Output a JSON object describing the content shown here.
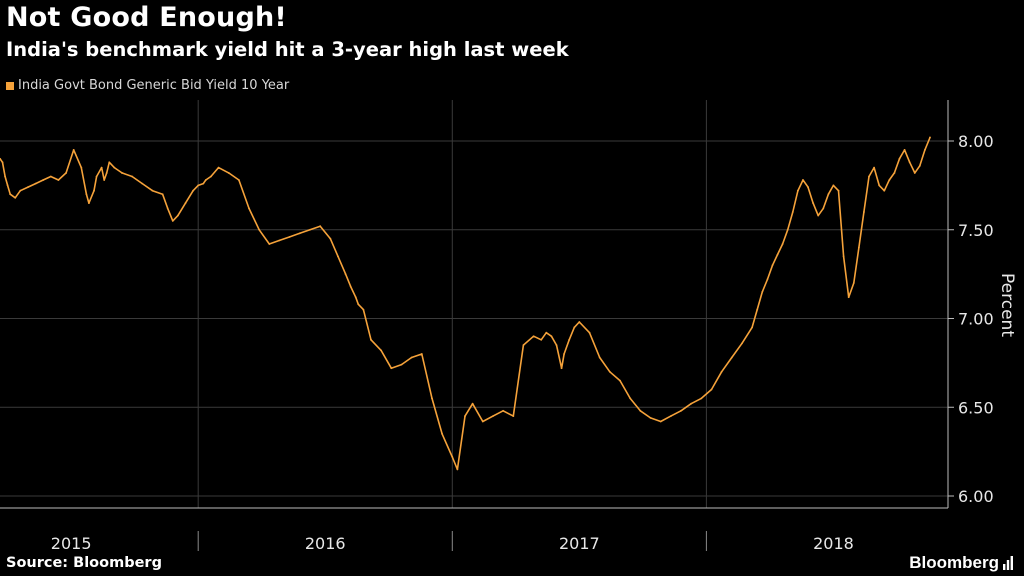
{
  "header": {
    "title": "Not Good Enough!",
    "subtitle": "India's benchmark yield hit a 3-year high last week"
  },
  "footer": {
    "source": "Source: Bloomberg",
    "brand": "Bloomberg"
  },
  "colors": {
    "background": "#000000",
    "series": "#f5a23a",
    "grid": "#3a3a3a"
  },
  "chart_data": {
    "type": "line",
    "title": "Not Good Enough!",
    "subtitle": "India's benchmark yield hit a 3-year high last week",
    "ylabel": "Percent",
    "xlabel": "",
    "ylim": [
      6.0,
      8.2
    ],
    "xlim": [
      2014.72,
      2018.65
    ],
    "y_ticks": [
      6.0,
      6.5,
      7.0,
      7.5,
      8.0
    ],
    "y_tick_labels": [
      "6.00",
      "6.50",
      "7.00",
      "7.50",
      "8.00"
    ],
    "x_tick_labels": [
      "2015",
      "2016",
      "2017",
      "2018"
    ],
    "x_tick_label_positions": [
      2015.0,
      2016.0,
      2017.0,
      2018.0
    ],
    "x_period_separators": [
      2015.5,
      2016.5,
      2017.5
    ],
    "grid": true,
    "legend": "top-left",
    "series": [
      {
        "name": "India Govt Bond Generic Bid Yield 10 Year",
        "x": [
          2014.72,
          2014.73,
          2014.74,
          2014.75,
          2014.76,
          2014.78,
          2014.8,
          2014.83,
          2014.86,
          2014.89,
          2014.92,
          2014.95,
          2014.98,
          2015.01,
          2015.04,
          2015.06,
          2015.07,
          2015.09,
          2015.1,
          2015.12,
          2015.13,
          2015.14,
          2015.15,
          2015.17,
          2015.2,
          2015.24,
          2015.28,
          2015.32,
          2015.36,
          2015.38,
          2015.4,
          2015.42,
          2015.45,
          2015.48,
          2015.5,
          2015.52,
          2015.53,
          2015.55,
          2015.58,
          2015.62,
          2015.66,
          2015.7,
          2015.74,
          2015.78,
          2015.82,
          2015.86,
          2015.9,
          2015.94,
          2015.98,
          2016.02,
          2016.05,
          2016.08,
          2016.1,
          2016.12,
          2016.13,
          2016.15,
          2016.18,
          2016.22,
          2016.26,
          2016.3,
          2016.34,
          2016.38,
          2016.42,
          2016.46,
          2016.5,
          2016.52,
          2016.55,
          2016.58,
          2016.62,
          2016.66,
          2016.7,
          2016.74,
          2016.78,
          2016.82,
          2016.85,
          2016.87,
          2016.89,
          2016.91,
          2016.93,
          2016.94,
          2016.96,
          2016.98,
          2017.0,
          2017.04,
          2017.08,
          2017.12,
          2017.16,
          2017.2,
          2017.24,
          2017.28,
          2017.32,
          2017.36,
          2017.4,
          2017.44,
          2017.48,
          2017.52,
          2017.56,
          2017.6,
          2017.64,
          2017.68,
          2017.7,
          2017.72,
          2017.74,
          2017.76,
          2017.78,
          2017.8,
          2017.82,
          2017.84,
          2017.86,
          2017.88,
          2017.9,
          2017.92,
          2017.94,
          2017.96,
          2017.98,
          2018.0,
          2018.02,
          2018.04,
          2018.06,
          2018.08,
          2018.1,
          2018.12,
          2018.14,
          2018.16,
          2018.18,
          2018.2,
          2018.22,
          2018.24,
          2018.26,
          2018.28,
          2018.3,
          2018.32,
          2018.34,
          2018.36,
          2018.38
        ],
        "values": [
          7.9,
          7.88,
          7.8,
          7.75,
          7.7,
          7.68,
          7.72,
          7.74,
          7.76,
          7.78,
          7.8,
          7.78,
          7.82,
          7.95,
          7.85,
          7.7,
          7.65,
          7.72,
          7.8,
          7.85,
          7.78,
          7.82,
          7.88,
          7.85,
          7.82,
          7.8,
          7.76,
          7.72,
          7.7,
          7.62,
          7.55,
          7.58,
          7.65,
          7.72,
          7.75,
          7.76,
          7.78,
          7.8,
          7.85,
          7.82,
          7.78,
          7.62,
          7.5,
          7.42,
          7.44,
          7.46,
          7.48,
          7.5,
          7.52,
          7.45,
          7.35,
          7.25,
          7.18,
          7.12,
          7.08,
          7.05,
          6.88,
          6.82,
          6.72,
          6.74,
          6.78,
          6.8,
          6.55,
          6.35,
          6.22,
          6.15,
          6.45,
          6.52,
          6.42,
          6.45,
          6.48,
          6.45,
          6.85,
          6.9,
          6.88,
          6.92,
          6.9,
          6.85,
          6.72,
          6.8,
          6.88,
          6.95,
          6.98,
          6.92,
          6.78,
          6.7,
          6.65,
          6.55,
          6.48,
          6.44,
          6.42,
          6.45,
          6.48,
          6.52,
          6.55,
          6.6,
          6.7,
          6.78,
          6.86,
          6.95,
          7.05,
          7.15,
          7.22,
          7.3,
          7.36,
          7.42,
          7.5,
          7.6,
          7.72,
          7.78,
          7.74,
          7.65,
          7.58,
          7.62,
          7.7,
          7.75,
          7.72,
          7.35,
          7.12,
          7.2,
          7.4,
          7.6,
          7.8,
          7.85,
          7.75,
          7.72,
          7.78,
          7.82,
          7.9,
          7.95,
          7.88,
          7.82,
          7.86,
          7.95,
          8.02
        ]
      }
    ]
  }
}
